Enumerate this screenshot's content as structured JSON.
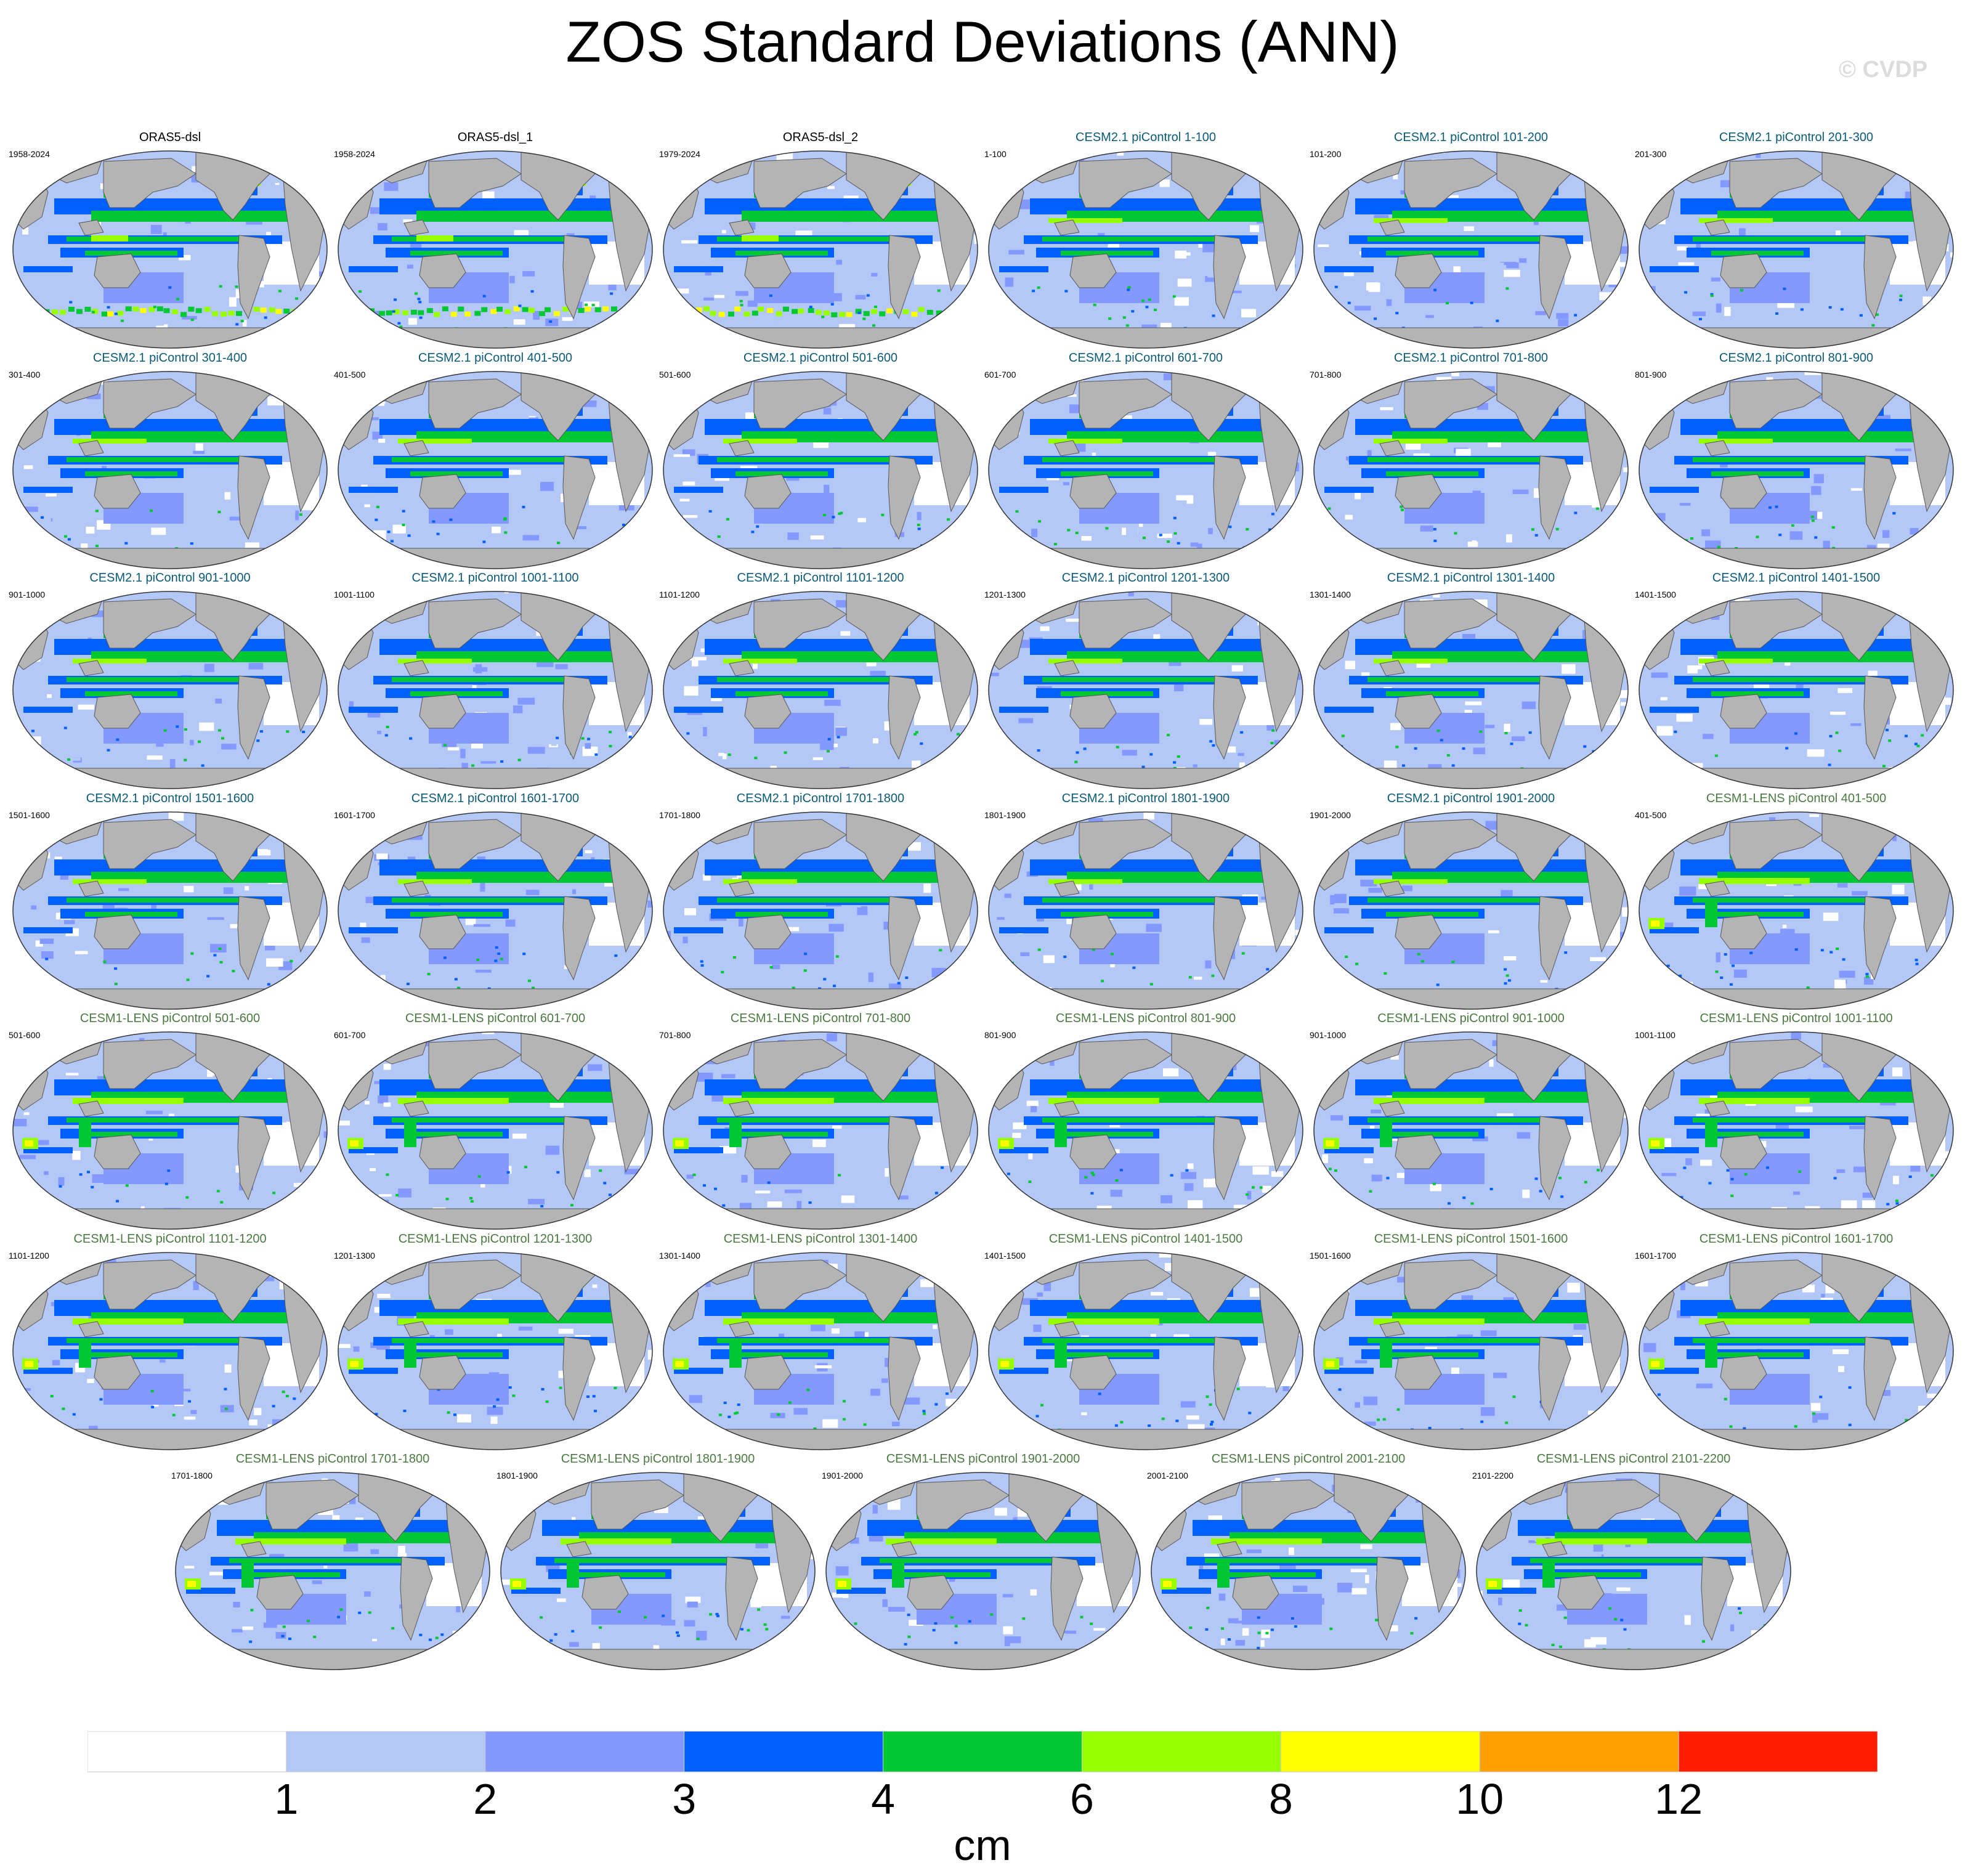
{
  "figure": {
    "title": "ZOS Standard Deviations (ANN)",
    "watermark": "© CVDP",
    "units": "cm"
  },
  "colors": {
    "obs_title": "#000000",
    "cesm2_title": "#0a5a78",
    "cesm1_title": "#4a7a40",
    "land": "#b4b4b4"
  },
  "colorbar": {
    "labels": [
      "1",
      "2",
      "3",
      "4",
      "6",
      "8",
      "10",
      "12"
    ],
    "colors": [
      "#ffffff",
      "#b4c8f8",
      "#8499ff",
      "#0060ff",
      "#00c832",
      "#96ff00",
      "#ffff00",
      "#ffa000",
      "#ff1e00"
    ]
  },
  "panels": [
    {
      "title": "ORAS5-dsl",
      "years": "1958-2024",
      "group": "obs"
    },
    {
      "title": "ORAS5-dsl_1",
      "years": "1958-2024",
      "group": "obs"
    },
    {
      "title": "ORAS5-dsl_2",
      "years": "1979-2024",
      "group": "obs"
    },
    {
      "title": "CESM2.1 piControl 1-100",
      "years": "1-100",
      "group": "cesm2"
    },
    {
      "title": "CESM2.1 piControl 101-200",
      "years": "101-200",
      "group": "cesm2"
    },
    {
      "title": "CESM2.1 piControl 201-300",
      "years": "201-300",
      "group": "cesm2"
    },
    {
      "title": "CESM2.1 piControl 301-400",
      "years": "301-400",
      "group": "cesm2"
    },
    {
      "title": "CESM2.1 piControl 401-500",
      "years": "401-500",
      "group": "cesm2"
    },
    {
      "title": "CESM2.1 piControl 501-600",
      "years": "501-600",
      "group": "cesm2"
    },
    {
      "title": "CESM2.1 piControl 601-700",
      "years": "601-700",
      "group": "cesm2"
    },
    {
      "title": "CESM2.1 piControl 701-800",
      "years": "701-800",
      "group": "cesm2"
    },
    {
      "title": "CESM2.1 piControl 801-900",
      "years": "801-900",
      "group": "cesm2"
    },
    {
      "title": "CESM2.1 piControl 901-1000",
      "years": "901-1000",
      "group": "cesm2"
    },
    {
      "title": "CESM2.1 piControl 1001-1100",
      "years": "1001-1100",
      "group": "cesm2"
    },
    {
      "title": "CESM2.1 piControl 1101-1200",
      "years": "1101-1200",
      "group": "cesm2"
    },
    {
      "title": "CESM2.1 piControl 1201-1300",
      "years": "1201-1300",
      "group": "cesm2"
    },
    {
      "title": "CESM2.1 piControl 1301-1400",
      "years": "1301-1400",
      "group": "cesm2"
    },
    {
      "title": "CESM2.1 piControl 1401-1500",
      "years": "1401-1500",
      "group": "cesm2"
    },
    {
      "title": "CESM2.1 piControl 1501-1600",
      "years": "1501-1600",
      "group": "cesm2"
    },
    {
      "title": "CESM2.1 piControl 1601-1700",
      "years": "1601-1700",
      "group": "cesm2"
    },
    {
      "title": "CESM2.1 piControl 1701-1800",
      "years": "1701-1800",
      "group": "cesm2"
    },
    {
      "title": "CESM2.1 piControl 1801-1900",
      "years": "1801-1900",
      "group": "cesm2"
    },
    {
      "title": "CESM2.1 piControl 1901-2000",
      "years": "1901-2000",
      "group": "cesm2"
    },
    {
      "title": "CESM1-LENS piControl 401-500",
      "years": "401-500",
      "group": "cesm1"
    },
    {
      "title": "CESM1-LENS piControl 501-600",
      "years": "501-600",
      "group": "cesm1"
    },
    {
      "title": "CESM1-LENS piControl 601-700",
      "years": "601-700",
      "group": "cesm1"
    },
    {
      "title": "CESM1-LENS piControl 701-800",
      "years": "701-800",
      "group": "cesm1"
    },
    {
      "title": "CESM1-LENS piControl 801-900",
      "years": "801-900",
      "group": "cesm1"
    },
    {
      "title": "CESM1-LENS piControl 901-1000",
      "years": "901-1000",
      "group": "cesm1"
    },
    {
      "title": "CESM1-LENS piControl 1001-1100",
      "years": "1001-1100",
      "group": "cesm1"
    },
    {
      "title": "CESM1-LENS piControl 1101-1200",
      "years": "1101-1200",
      "group": "cesm1"
    },
    {
      "title": "CESM1-LENS piControl 1201-1300",
      "years": "1201-1300",
      "group": "cesm1"
    },
    {
      "title": "CESM1-LENS piControl 1301-1400",
      "years": "1301-1400",
      "group": "cesm1"
    },
    {
      "title": "CESM1-LENS piControl 1401-1500",
      "years": "1401-1500",
      "group": "cesm1"
    },
    {
      "title": "CESM1-LENS piControl 1501-1600",
      "years": "1501-1600",
      "group": "cesm1"
    },
    {
      "title": "CESM1-LENS piControl 1601-1700",
      "years": "1601-1700",
      "group": "cesm1"
    },
    {
      "title": "CESM1-LENS piControl 1701-1800",
      "years": "1701-1800",
      "group": "cesm1"
    },
    {
      "title": "CESM1-LENS piControl 1801-1900",
      "years": "1801-1900",
      "group": "cesm1"
    },
    {
      "title": "CESM1-LENS piControl 1901-2000",
      "years": "1901-2000",
      "group": "cesm1"
    },
    {
      "title": "CESM1-LENS piControl 2001-2100",
      "years": "2001-2100",
      "group": "cesm1"
    },
    {
      "title": "CESM1-LENS piControl 2101-2200",
      "years": "2101-2200",
      "group": "cesm1"
    }
  ]
}
